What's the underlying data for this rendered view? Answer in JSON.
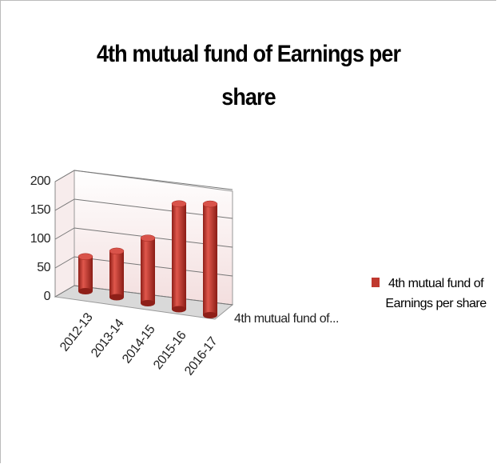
{
  "chart_data": {
    "type": "bar3d",
    "title": "4th mutual fund of Earnings per share",
    "categories": [
      "2012-13",
      "2013-14",
      "2014-15",
      "2015-16",
      "2016-17"
    ],
    "series": [
      {
        "name": "4th mutual fund of Earnings per share",
        "color": "#c0392f",
        "values": [
          60,
          80,
          113,
          183,
          193
        ]
      }
    ],
    "depth_label": "4th mutual fund of...",
    "ylim": [
      0,
      200
    ],
    "yticks": [
      0,
      50,
      100,
      150,
      200
    ],
    "grid": true,
    "legend": "right"
  }
}
